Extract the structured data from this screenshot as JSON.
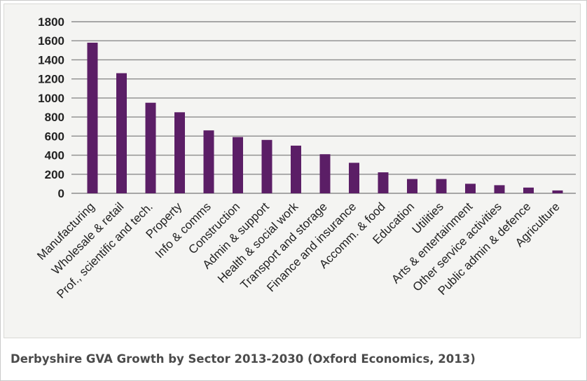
{
  "caption": "Derbyshire GVA Growth by Sector 2013-2030 (Oxford Economics, 2013)",
  "colors": {
    "bar": "#5b1e66",
    "grid": "#8c8c8c",
    "axis_text": "#222222"
  },
  "chart_data": {
    "type": "bar",
    "title": "",
    "xlabel": "",
    "ylabel": "",
    "ylim": [
      0,
      1800
    ],
    "yticks": [
      0,
      200,
      400,
      600,
      800,
      1000,
      1200,
      1400,
      1600,
      1800
    ],
    "grid": true,
    "legend": "none",
    "categories": [
      "Manufacturing",
      "Wholesale & retail",
      "Prof., scientific and tech.",
      "Property",
      "Info & comms",
      "Construction",
      "Admin & support",
      "Health & social work",
      "Transport and storage",
      "Finance and insurance",
      "Accomm. & food",
      "Education",
      "Utilities",
      "Arts & entertainment",
      "Other service activities",
      "Public admin & defence",
      "Agriculture"
    ],
    "values": [
      1580,
      1260,
      950,
      850,
      660,
      590,
      560,
      500,
      410,
      320,
      220,
      150,
      150,
      100,
      85,
      60,
      30
    ]
  }
}
